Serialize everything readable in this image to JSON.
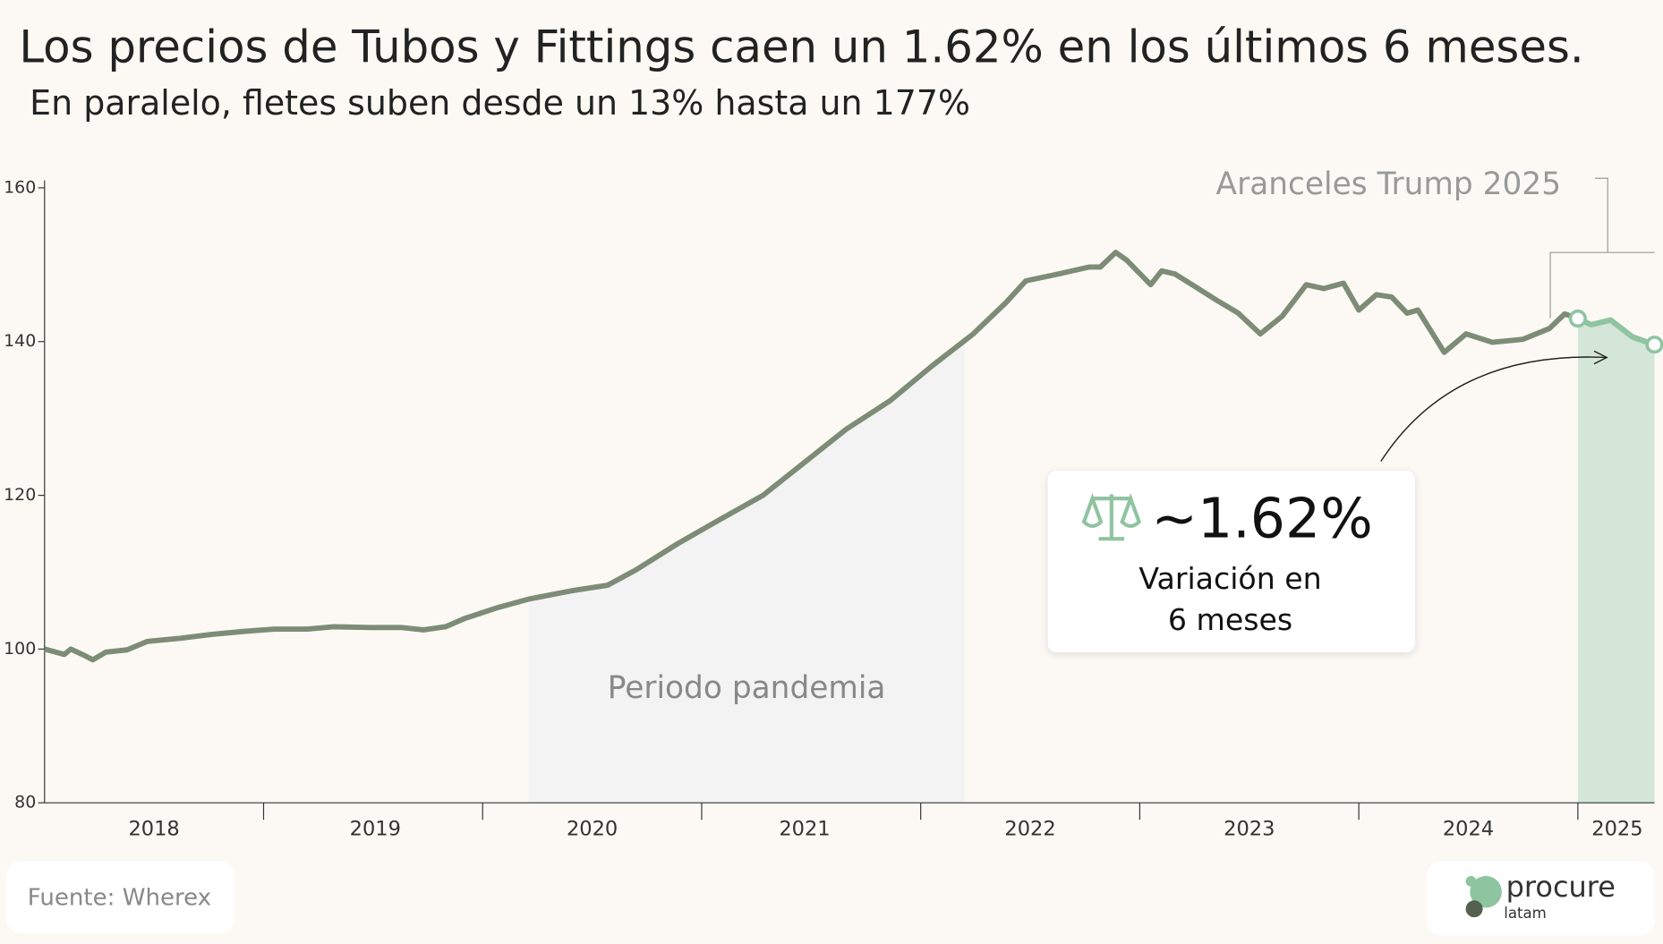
{
  "title": "Los precios de Tubos y Fittings caen un 1.62% en los últimos 6 meses.",
  "subtitle": "En paralelo, fletes suben desde un 13% hasta un 177%",
  "chart_data": {
    "type": "line",
    "color": "#7d8c77",
    "highlight_color": "#8fc4a0",
    "x": [
      2018.0,
      2018.09,
      2018.12,
      2018.18,
      2018.22,
      2018.28,
      2018.377,
      2018.47,
      2018.62,
      2018.76,
      2018.91,
      2019.05,
      2019.2,
      2019.32,
      2019.49,
      2019.63,
      2019.73,
      2019.83,
      2019.92,
      2020.07,
      2020.21,
      2020.41,
      2020.57,
      2020.7,
      2020.89,
      2021.08,
      2021.28,
      2021.47,
      2021.66,
      2021.86,
      2022.05,
      2022.24,
      2022.39,
      2022.48,
      2022.63,
      2022.77,
      2022.82,
      2022.89,
      2022.94,
      2023.05,
      2023.1,
      2023.16,
      2023.25,
      2023.35,
      2023.45,
      2023.55,
      2023.65,
      2023.76,
      2023.84,
      2023.93,
      2024.0,
      2024.08,
      2024.15,
      2024.22,
      2024.27,
      2024.39,
      2024.49,
      2024.61,
      2024.75,
      2024.87,
      2024.94,
      2025.0,
      2025.06,
      2025.15,
      2025.25,
      2025.35
    ],
    "values": [
      100,
      99.3,
      100,
      99.2,
      98.6,
      99.6,
      99.9,
      101,
      101.4,
      101.9,
      102.3,
      102.6,
      102.6,
      102.9,
      102.8,
      102.8,
      102.5,
      102.9,
      104,
      105.4,
      106.5,
      107.6,
      108.3,
      110.3,
      113.7,
      116.8,
      120,
      124.3,
      128.6,
      132.3,
      136.8,
      141,
      145.1,
      147.9,
      148.8,
      149.7,
      149.7,
      151.6,
      150.6,
      147.4,
      149.2,
      148.8,
      147.2,
      145.4,
      143.7,
      141,
      143.3,
      147.4,
      146.9,
      147.6,
      144.1,
      146.1,
      145.8,
      143.7,
      144.1,
      138.6,
      141,
      139.9,
      140.3,
      141.7,
      143.6,
      143,
      142.2,
      142.8,
      140.6,
      139.6
    ],
    "xlim": [
      2018.0,
      2025.35
    ],
    "ylim": [
      80,
      160
    ],
    "yticks": [
      80,
      100,
      120,
      140,
      160
    ],
    "xticks": [
      {
        "value": 2018.5,
        "label": "2018"
      },
      {
        "value": 2019.51,
        "label": "2019"
      },
      {
        "value": 2020.5,
        "label": "2020"
      },
      {
        "value": 2021.47,
        "label": "2021"
      },
      {
        "value": 2022.5,
        "label": "2022"
      },
      {
        "value": 2023.5,
        "label": "2023"
      },
      {
        "value": 2024.5,
        "label": "2024"
      },
      {
        "value": 2025.18,
        "label": "2025"
      }
    ],
    "periods": [
      {
        "label": "Periodo pandemia",
        "range": [
          2020.21,
          2022.2
        ],
        "color": "#f3f3f3"
      },
      {
        "label": "Aranceles Trump 2025",
        "range": [
          2025.0,
          2025.35
        ],
        "color": "#d3e6d7",
        "highlight": true
      }
    ],
    "callout": {
      "value": "~1.62%",
      "lines": [
        "Variación en",
        "6 meses"
      ]
    }
  },
  "footer": {
    "source": "Fuente: Wherex",
    "logo": "procure",
    "logo_sub": "latam"
  }
}
